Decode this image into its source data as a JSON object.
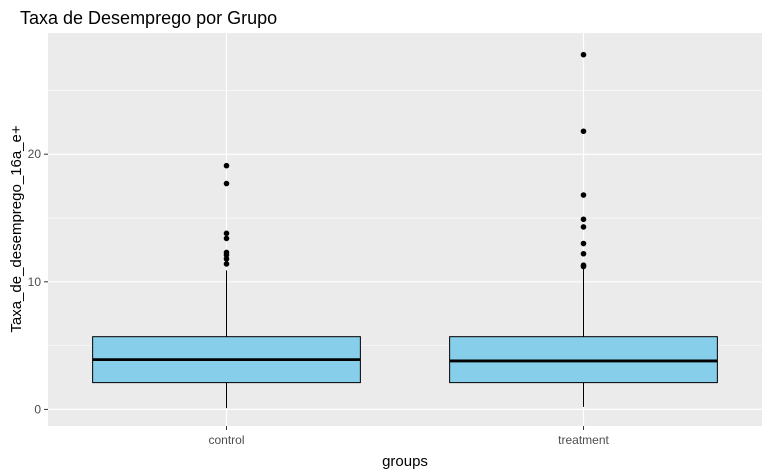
{
  "chart_data": {
    "type": "boxplot",
    "title": "Taxa de Desemprego por Grupo",
    "xlabel": "groups",
    "ylabel": "Taxa_de_desemprego_16a_e+",
    "ylim": [
      -1.3,
      29.5
    ],
    "y_ticks": [
      0,
      10,
      20
    ],
    "grid": true,
    "categories": [
      "control",
      "treatment"
    ],
    "series": [
      {
        "category": "control",
        "whisker_low": 0.1,
        "q1": 2.1,
        "median": 3.9,
        "q3": 5.7,
        "whisker_high": 10.9,
        "outliers": [
          11.4,
          11.8,
          12.1,
          12.3,
          13.4,
          13.8,
          17.7,
          19.1
        ]
      },
      {
        "category": "treatment",
        "whisker_low": 0.2,
        "q1": 2.1,
        "median": 3.8,
        "q3": 5.7,
        "whisker_high": 11.0,
        "outliers": [
          11.2,
          11.3,
          12.2,
          13.0,
          14.3,
          14.9,
          16.8,
          21.8,
          27.8
        ]
      }
    ],
    "colors": {
      "panel_background": "#ebebeb",
      "grid": "#ffffff",
      "box_fill": "#87ceeb",
      "box_line": "#000000",
      "outlier": "#000000"
    }
  }
}
